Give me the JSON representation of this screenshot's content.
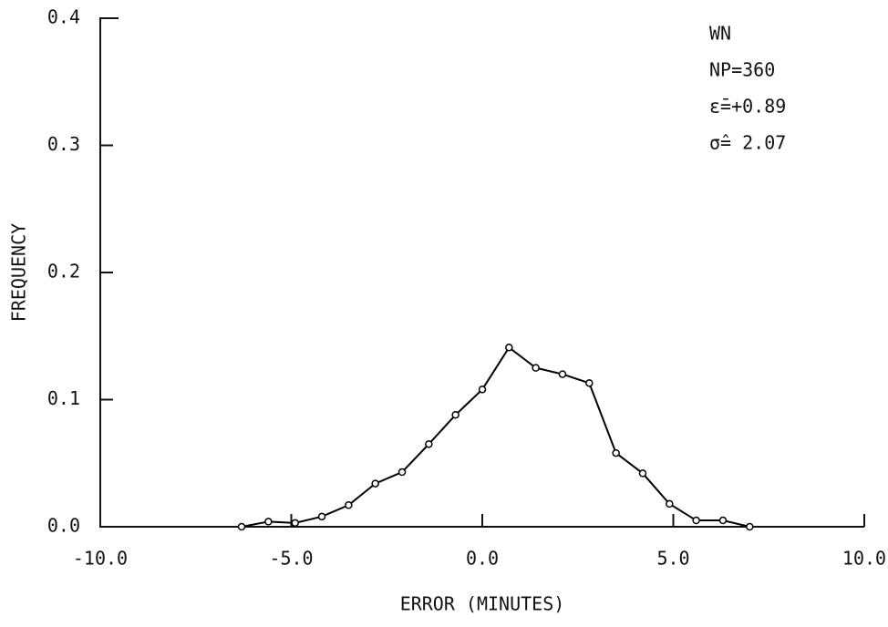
{
  "chart_data": {
    "type": "line",
    "x_label": "ERROR (MINUTES)",
    "y_label": "FREQUENCY",
    "annotations": [
      "WN",
      "NP=360",
      "ε̄=+0.89",
      "σ̂= 2.07"
    ],
    "x": [
      -6.3,
      -5.6,
      -4.9,
      -4.2,
      -3.5,
      -2.8,
      -2.1,
      -1.4,
      -0.7,
      0,
      0.7,
      1.4,
      2.1,
      2.8,
      3.5,
      4.2,
      4.9,
      5.6,
      6.3,
      7.0
    ],
    "values": [
      0.0,
      0.004,
      0.003,
      0.008,
      0.017,
      0.034,
      0.043,
      0.065,
      0.088,
      0.108,
      0.141,
      0.125,
      0.12,
      0.113,
      0.058,
      0.042,
      0.018,
      0.005,
      0.005,
      0.0
    ],
    "color": "#000000",
    "xlim": [
      -10,
      10
    ],
    "xticks": [
      {
        "value": -10,
        "label": "-10.0"
      },
      {
        "value": -5,
        "label": "-5.0"
      },
      {
        "value": 0,
        "label": "0.0"
      },
      {
        "value": 5,
        "label": "5.0"
      },
      {
        "value": 10,
        "label": "10.0"
      }
    ],
    "ylim": [
      0,
      0.4
    ],
    "yticks": [
      {
        "value": 0,
        "label": "0.0"
      },
      {
        "value": 0.1,
        "label": "0.1"
      },
      {
        "value": 0.2,
        "label": "0.2"
      },
      {
        "value": 0.3,
        "label": "0.3"
      },
      {
        "value": 0.4,
        "label": "0.4"
      }
    ]
  }
}
